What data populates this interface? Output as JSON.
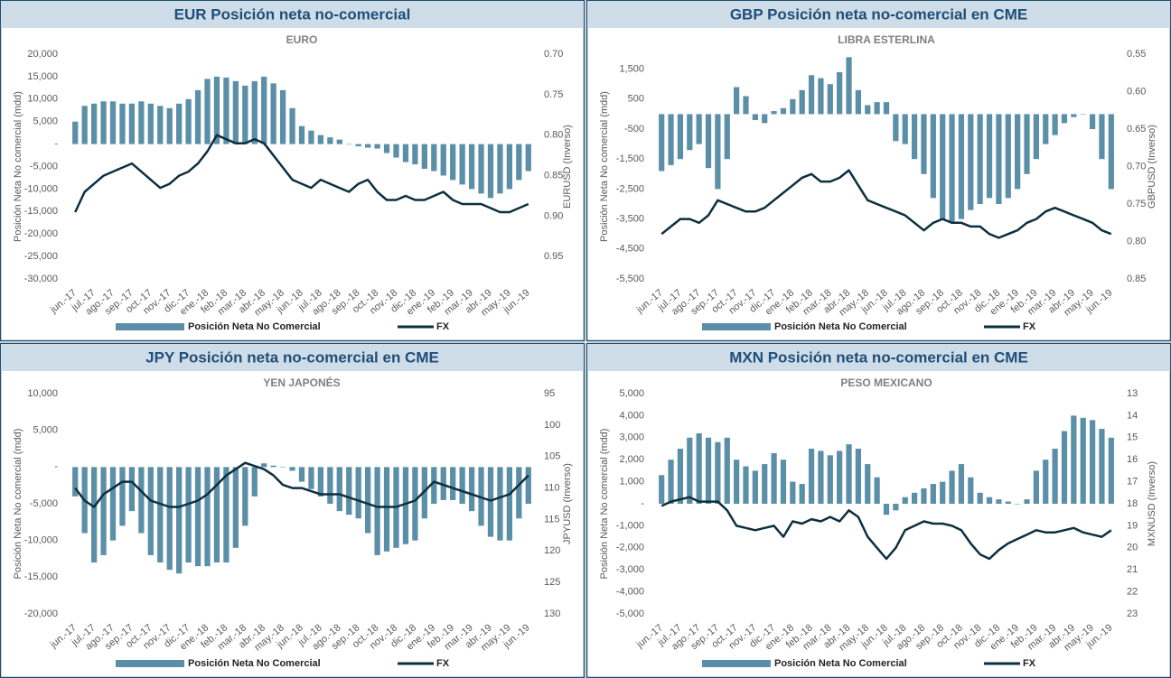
{
  "chart_data": [
    {
      "type": "combo",
      "title": "EUR Posición neta no-comercial",
      "subtitle": "EURO",
      "ylabel": "Posición Neta No comercial (mdd)",
      "y2label": "EURUSD (Inverso)",
      "categories": [
        "jun.-17",
        null,
        "jul.-17",
        null,
        "ago.-17",
        null,
        "sep.-17",
        null,
        "oct.-17",
        null,
        "nov.-17",
        null,
        "dic.-17",
        null,
        "ene.-18",
        null,
        "feb.-18",
        null,
        "mar.-18",
        null,
        "abr.-18",
        null,
        "may.-18",
        null,
        "jun.-18",
        null,
        "jul.-18",
        null,
        "ago.-18",
        null,
        "sep.-18",
        null,
        "oct.-18",
        null,
        "nov.-18",
        null,
        "dic.-18",
        null,
        "ene.-19",
        null,
        "feb.-19",
        null,
        "mar.-19",
        null,
        "abr.-19",
        null,
        "may.-19",
        null,
        "jun.-19"
      ],
      "series": [
        {
          "name": "Posición Neta No Comercial",
          "color": "#5b8fa8",
          "values": [
            5000,
            8500,
            9000,
            9500,
            9500,
            9000,
            9000,
            9500,
            9000,
            8500,
            8000,
            9000,
            10000,
            12000,
            14500,
            15000,
            14800,
            14000,
            13000,
            14000,
            15000,
            13500,
            12000,
            8000,
            4000,
            3000,
            2000,
            1500,
            1000,
            0,
            -500,
            -800,
            -1000,
            -2000,
            -3000,
            -4000,
            -4500,
            -5500,
            -6000,
            -7000,
            -8000,
            -9000,
            -10000,
            -11000,
            -12000,
            -11000,
            -10000,
            -8000,
            -6000
          ]
        },
        {
          "name": "FX",
          "color": "#0d2f3f",
          "axis": "y2",
          "values": [
            0.895,
            0.87,
            0.86,
            0.85,
            0.845,
            0.84,
            0.835,
            0.845,
            0.855,
            0.865,
            0.86,
            0.85,
            0.845,
            0.835,
            0.82,
            0.8,
            0.805,
            0.81,
            0.81,
            0.805,
            0.81,
            0.825,
            0.84,
            0.855,
            0.86,
            0.865,
            0.855,
            0.86,
            0.865,
            0.87,
            0.86,
            0.855,
            0.87,
            0.88,
            0.88,
            0.875,
            0.88,
            0.88,
            0.875,
            0.87,
            0.88,
            0.885,
            0.885,
            0.885,
            0.89,
            0.895,
            0.895,
            0.89,
            0.885
          ]
        }
      ],
      "ylim": [
        -30000,
        20000
      ],
      "yticks": [
        {
          "value": 20000,
          "label": "20,000"
        },
        {
          "value": 15000,
          "label": "15,000"
        },
        {
          "value": 10000,
          "label": "10,000"
        },
        {
          "value": 5000,
          "label": "5,000"
        },
        {
          "value": 0,
          "label": "-"
        },
        {
          "value": -5000,
          "label": "-5,000"
        },
        {
          "value": -10000,
          "label": "-10,000"
        },
        {
          "value": -15000,
          "label": "-15,000"
        },
        {
          "value": -20000,
          "label": "-20,000"
        },
        {
          "value": -25000,
          "label": "-25,000"
        },
        {
          "value": -30000,
          "label": "-30,000"
        }
      ],
      "y2lim": [
        0.9775,
        0.7
      ],
      "y2ticks": [
        {
          "value": 0.7,
          "label": "0.70"
        },
        0.75,
        {
          "value": 0.8,
          "label": "0.80"
        },
        0.85,
        {
          "value": 0.9,
          "label": "0.90"
        },
        0.95
      ],
      "legend": "bottom"
    },
    {
      "type": "combo",
      "title": "GBP Posición neta no-comercial en CME",
      "subtitle": "LIBRA ESTERLINA",
      "ylabel": "Posición Neta No comercial (mdd)",
      "y2label": "GBPUSD (Inverso)",
      "categories": [
        "jun.-17",
        null,
        "jul.-17",
        null,
        "ago.-17",
        null,
        "sep.-17",
        null,
        "oct.-17",
        null,
        "nov.-17",
        null,
        "dic.-17",
        null,
        "ene.-18",
        null,
        "feb.-18",
        null,
        "mar.-18",
        null,
        "abr.-18",
        null,
        "may.-18",
        null,
        "jun.-18",
        null,
        "jul.-18",
        null,
        "ago.-18",
        null,
        "sep.-18",
        null,
        "oct.-18",
        null,
        "nov.-18",
        null,
        "dic.-18",
        null,
        "ene.-19",
        null,
        "feb.-19",
        null,
        "mar.-19",
        null,
        "abr.-19",
        null,
        "may.-19",
        null,
        "jun.-19"
      ],
      "series": [
        {
          "name": "Posición Neta No Comercial",
          "color": "#5b8fa8",
          "values": [
            -1900,
            -1700,
            -1500,
            -1200,
            -1000,
            -1800,
            -2500,
            -1500,
            900,
            600,
            -200,
            -300,
            100,
            200,
            500,
            800,
            1300,
            1200,
            1000,
            1400,
            1900,
            800,
            300,
            400,
            400,
            -900,
            -1000,
            -1500,
            -2000,
            -2800,
            -3500,
            -3600,
            -3500,
            -3200,
            -3000,
            -2800,
            -3000,
            -2800,
            -2500,
            -2000,
            -1500,
            -1000,
            -700,
            -300,
            -100,
            0,
            -500,
            -1500,
            -2500
          ]
        },
        {
          "name": "FX",
          "color": "#0d2f3f",
          "axis": "y2",
          "values": [
            0.79,
            0.78,
            0.77,
            0.77,
            0.775,
            0.765,
            0.745,
            0.75,
            0.755,
            0.76,
            0.76,
            0.755,
            0.745,
            0.735,
            0.725,
            0.715,
            0.71,
            0.72,
            0.72,
            0.715,
            0.705,
            0.725,
            0.745,
            0.75,
            0.755,
            0.76,
            0.765,
            0.775,
            0.785,
            0.775,
            0.77,
            0.775,
            0.775,
            0.78,
            0.78,
            0.79,
            0.795,
            0.79,
            0.785,
            0.775,
            0.77,
            0.76,
            0.755,
            0.76,
            0.765,
            0.77,
            0.775,
            0.785,
            0.79
          ]
        }
      ],
      "ylim": [
        -5500,
        2000
      ],
      "yticks": [
        {
          "value": 1500,
          "label": "1,500"
        },
        500,
        -500,
        {
          "value": -1500,
          "label": "-1,500"
        },
        {
          "value": -2500,
          "label": "-2,500"
        },
        {
          "value": -3500,
          "label": "-3,500"
        },
        {
          "value": -4500,
          "label": "-4,500"
        },
        {
          "value": -5500,
          "label": "-5,500"
        }
      ],
      "y2lim": [
        0.85,
        0.55
      ],
      "y2ticks": [
        0.55,
        {
          "value": 0.6,
          "label": "0.60"
        },
        0.65,
        {
          "value": 0.7,
          "label": "0.70"
        },
        0.75,
        {
          "value": 0.8,
          "label": "0.80"
        },
        0.85
      ],
      "legend": "bottom"
    },
    {
      "type": "combo",
      "title": "JPY Posición neta no-comercial en CME",
      "subtitle": "YEN JAPONÉS",
      "ylabel": "Posición Neta No comercial (mdd)",
      "y2label": "JPYUSD (Inverso)",
      "categories": [
        "jun.-17",
        null,
        "jul.-17",
        null,
        "ago.-17",
        null,
        "sep.-17",
        null,
        "oct.-17",
        null,
        "nov.-17",
        null,
        "dic.-17",
        null,
        "ene.-18",
        null,
        "feb.-18",
        null,
        "mar.-18",
        null,
        "abr.-18",
        null,
        "may.-18",
        null,
        "jun.-18",
        null,
        "jul.-18",
        null,
        "ago.-18",
        null,
        "sep.-18",
        null,
        "oct.-18",
        null,
        "nov.-18",
        null,
        "dic.-18",
        null,
        "ene.-19",
        null,
        "feb.-19",
        null,
        "mar.-19",
        null,
        "abr.-19",
        null,
        "may.-19",
        null,
        "jun.-19"
      ],
      "series": [
        {
          "name": "Posición Neta No Comercial",
          "color": "#5b8fa8",
          "values": [
            -4000,
            -9000,
            -13000,
            -12000,
            -10000,
            -8000,
            -6000,
            -9000,
            -12000,
            -13000,
            -14000,
            -14500,
            -13000,
            -13500,
            -13500,
            -13000,
            -13000,
            -11000,
            -8000,
            -4000,
            500,
            200,
            0,
            -500,
            -2000,
            -3000,
            -4000,
            -5000,
            -6000,
            -6500,
            -7000,
            -9000,
            -12000,
            -11500,
            -11000,
            -10500,
            -10000,
            -7000,
            -5000,
            -4500,
            -4500,
            -5000,
            -6000,
            -8000,
            -9500,
            -10000,
            -10000,
            -7000,
            -5000
          ]
        },
        {
          "name": "FX",
          "color": "#0d2f3f",
          "axis": "y2",
          "values": [
            110,
            112,
            113,
            111,
            110,
            109,
            109,
            110.5,
            112,
            112.5,
            113,
            113,
            112.5,
            112,
            111,
            109.5,
            108,
            107,
            106,
            106.5,
            107,
            108,
            109.5,
            110,
            110,
            110.5,
            111,
            111,
            111,
            111.5,
            112,
            112.5,
            113,
            113,
            113,
            112.5,
            112,
            110.5,
            109,
            109.5,
            110,
            110.5,
            111,
            111.5,
            112,
            111.5,
            111,
            109.5,
            108
          ]
        }
      ],
      "ylim": [
        -20000,
        10000
      ],
      "yticks": [
        {
          "value": 10000,
          "label": "10,000"
        },
        {
          "value": 5000,
          "label": "5,000"
        },
        {
          "value": 0,
          "label": "-"
        },
        {
          "value": -5000,
          "label": "-5,000"
        },
        {
          "value": -10000,
          "label": "-10,000"
        },
        {
          "value": -15000,
          "label": "-15,000"
        },
        {
          "value": -20000,
          "label": "-20,000"
        }
      ],
      "y2lim": [
        130,
        95
      ],
      "y2ticks": [
        95,
        100,
        105,
        110,
        115,
        120,
        125,
        130
      ],
      "legend": "bottom"
    },
    {
      "type": "combo",
      "title": "MXN Posición neta no-comercial en CME",
      "subtitle": "PESO MEXICANO",
      "ylabel": "Posición Neta No comercial (mdd)",
      "y2label": "MXNUSD (Inverso)",
      "categories": [
        "jun.-17",
        null,
        "jul.-17",
        null,
        "ago.-17",
        null,
        "sep.-17",
        null,
        "oct.-17",
        null,
        "nov.-17",
        null,
        "dic.-17",
        null,
        "ene.-18",
        null,
        "feb.-18",
        null,
        "mar.-18",
        null,
        "abr.-18",
        null,
        "may.-18",
        null,
        "jun.-18",
        null,
        "jul.-18",
        null,
        "ago.-18",
        null,
        "sep.-18",
        null,
        "oct.-18",
        null,
        "nov.-18",
        null,
        "dic.-18",
        null,
        "ene.-19",
        null,
        "feb.-19",
        null,
        "mar.-19",
        null,
        "abr.-19",
        null,
        "may.-19",
        null,
        "jun.-19"
      ],
      "series": [
        {
          "name": "Posición Neta No Comercial",
          "color": "#5b8fa8",
          "values": [
            1300,
            2000,
            2500,
            3000,
            3200,
            3000,
            2800,
            3000,
            2000,
            1700,
            1500,
            1800,
            2300,
            2000,
            1000,
            900,
            2500,
            2400,
            2200,
            2400,
            2700,
            2500,
            1800,
            1200,
            -500,
            -300,
            300,
            500,
            700,
            900,
            1000,
            1500,
            1800,
            1200,
            500,
            300,
            200,
            100,
            0,
            200,
            1500,
            2000,
            2500,
            3300,
            4000,
            3900,
            3800,
            3400,
            3000
          ]
        },
        {
          "name": "FX",
          "color": "#0d2f3f",
          "axis": "y2",
          "values": [
            18.1,
            17.9,
            17.8,
            17.7,
            17.9,
            17.9,
            17.9,
            18.3,
            19.0,
            19.1,
            19.2,
            19.1,
            19.0,
            19.5,
            18.8,
            18.9,
            18.7,
            18.8,
            18.6,
            18.8,
            18.3,
            18.6,
            19.5,
            20.0,
            20.5,
            20.0,
            19.2,
            19.0,
            18.8,
            18.9,
            18.9,
            19.0,
            19.2,
            19.8,
            20.3,
            20.5,
            20.1,
            19.8,
            19.6,
            19.4,
            19.2,
            19.3,
            19.3,
            19.2,
            19.1,
            19.3,
            19.4,
            19.5,
            19.2
          ]
        }
      ],
      "ylim": [
        -5000,
        5000
      ],
      "yticks": [
        {
          "value": 5000,
          "label": "5,000"
        },
        {
          "value": 4000,
          "label": "4,000"
        },
        {
          "value": 3000,
          "label": "3,000"
        },
        {
          "value": 2000,
          "label": "2,000"
        },
        {
          "value": 1000,
          "label": "1,000"
        },
        {
          "value": 0,
          "label": "-"
        },
        {
          "value": -1000,
          "label": "-1,000"
        },
        {
          "value": -2000,
          "label": "-2,000"
        },
        {
          "value": -3000,
          "label": "-3,000"
        },
        {
          "value": -4000,
          "label": "-4,000"
        },
        {
          "value": -5000,
          "label": "-5,000"
        }
      ],
      "y2lim": [
        23,
        13
      ],
      "y2ticks": [
        13,
        14,
        15,
        16,
        17,
        18,
        19,
        20,
        21,
        22,
        23
      ],
      "legend": "bottom"
    }
  ]
}
